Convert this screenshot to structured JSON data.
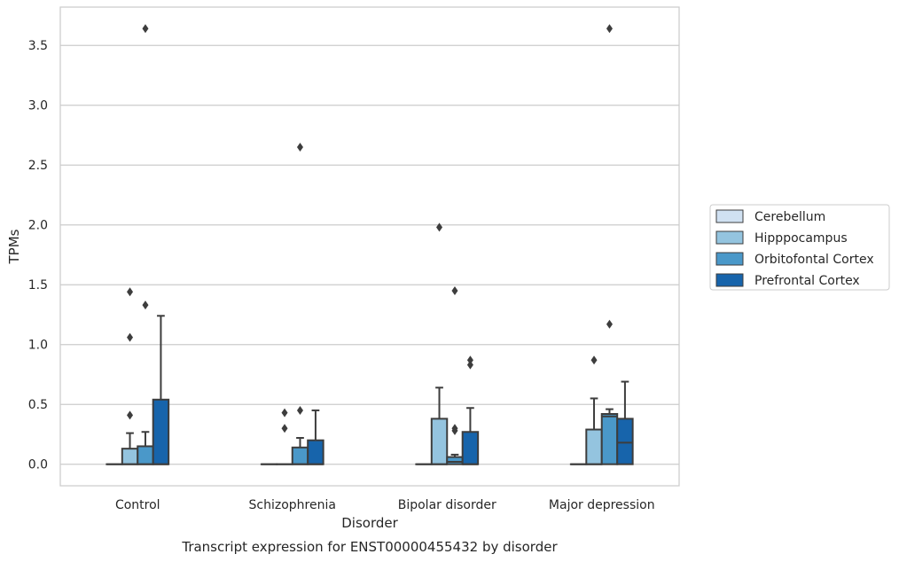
{
  "chart_data": {
    "type": "box",
    "title": "",
    "caption": "Transcript expression for ENST00000455432 by disorder",
    "xlabel": "Disorder",
    "ylabel": "TPMs",
    "ylim": [
      -0.18,
      3.82
    ],
    "yticks": [
      "0.0",
      "0.5",
      "1.0",
      "1.5",
      "2.0",
      "2.5",
      "3.0",
      "3.5"
    ],
    "grid": "y",
    "legend_position": "right",
    "categories": [
      "Control",
      "Schizophrenia",
      "Bipolar disorder",
      "Major depression"
    ],
    "series": [
      {
        "name": "Cerebellum",
        "color": "#d0e1f2",
        "boxes": [
          {
            "q1": 0,
            "median": 0,
            "q3": 0,
            "whislo": 0,
            "whishi": 0,
            "fliers": []
          },
          {
            "q1": 0,
            "median": 0,
            "q3": 0,
            "whislo": 0,
            "whishi": 0,
            "fliers": []
          },
          {
            "q1": 0,
            "median": 0,
            "q3": 0,
            "whislo": 0,
            "whishi": 0,
            "fliers": []
          },
          {
            "q1": 0,
            "median": 0,
            "q3": 0,
            "whislo": 0,
            "whishi": 0,
            "fliers": []
          }
        ]
      },
      {
        "name": "Hipppocampus",
        "color": "#94c4df",
        "boxes": [
          {
            "q1": 0,
            "median": 0,
            "q3": 0.13,
            "whislo": 0,
            "whishi": 0.26,
            "fliers": [
              0.41,
              1.06,
              1.44
            ]
          },
          {
            "q1": 0,
            "median": 0,
            "q3": 0,
            "whislo": 0,
            "whishi": 0,
            "fliers": [
              0.3,
              0.43
            ]
          },
          {
            "q1": 0,
            "median": 0,
            "q3": 0.38,
            "whislo": 0,
            "whishi": 0.64,
            "fliers": [
              1.98
            ]
          },
          {
            "q1": 0,
            "median": 0,
            "q3": 0.29,
            "whislo": 0,
            "whishi": 0.55,
            "fliers": [
              0.87
            ]
          }
        ]
      },
      {
        "name": "Orbitofontal Cortex",
        "color": "#4a98c9",
        "boxes": [
          {
            "q1": 0,
            "median": 0,
            "q3": 0.15,
            "whislo": 0,
            "whishi": 0.27,
            "fliers": [
              1.33,
              3.64
            ]
          },
          {
            "q1": 0,
            "median": 0,
            "q3": 0.14,
            "whislo": 0,
            "whishi": 0.22,
            "fliers": [
              0.45,
              2.65
            ]
          },
          {
            "q1": 0,
            "median": 0.02,
            "q3": 0.06,
            "whislo": 0,
            "whishi": 0.08,
            "fliers": [
              0.28,
              0.3,
              1.45
            ]
          },
          {
            "q1": 0,
            "median": 0.4,
            "q3": 0.42,
            "whislo": 0,
            "whishi": 0.46,
            "fliers": [
              1.17,
              3.64
            ]
          }
        ]
      },
      {
        "name": "Prefrontal Cortex",
        "color": "#1764ab",
        "boxes": [
          {
            "q1": 0,
            "median": 0,
            "q3": 0.54,
            "whislo": 0,
            "whishi": 1.24,
            "fliers": []
          },
          {
            "q1": 0,
            "median": 0,
            "q3": 0.2,
            "whislo": 0,
            "whishi": 0.45,
            "fliers": []
          },
          {
            "q1": 0,
            "median": 0,
            "q3": 0.27,
            "whislo": 0,
            "whishi": 0.47,
            "fliers": [
              0.83,
              0.87
            ]
          },
          {
            "q1": 0,
            "median": 0.18,
            "q3": 0.38,
            "whislo": 0,
            "whishi": 0.69,
            "fliers": []
          }
        ]
      }
    ]
  }
}
